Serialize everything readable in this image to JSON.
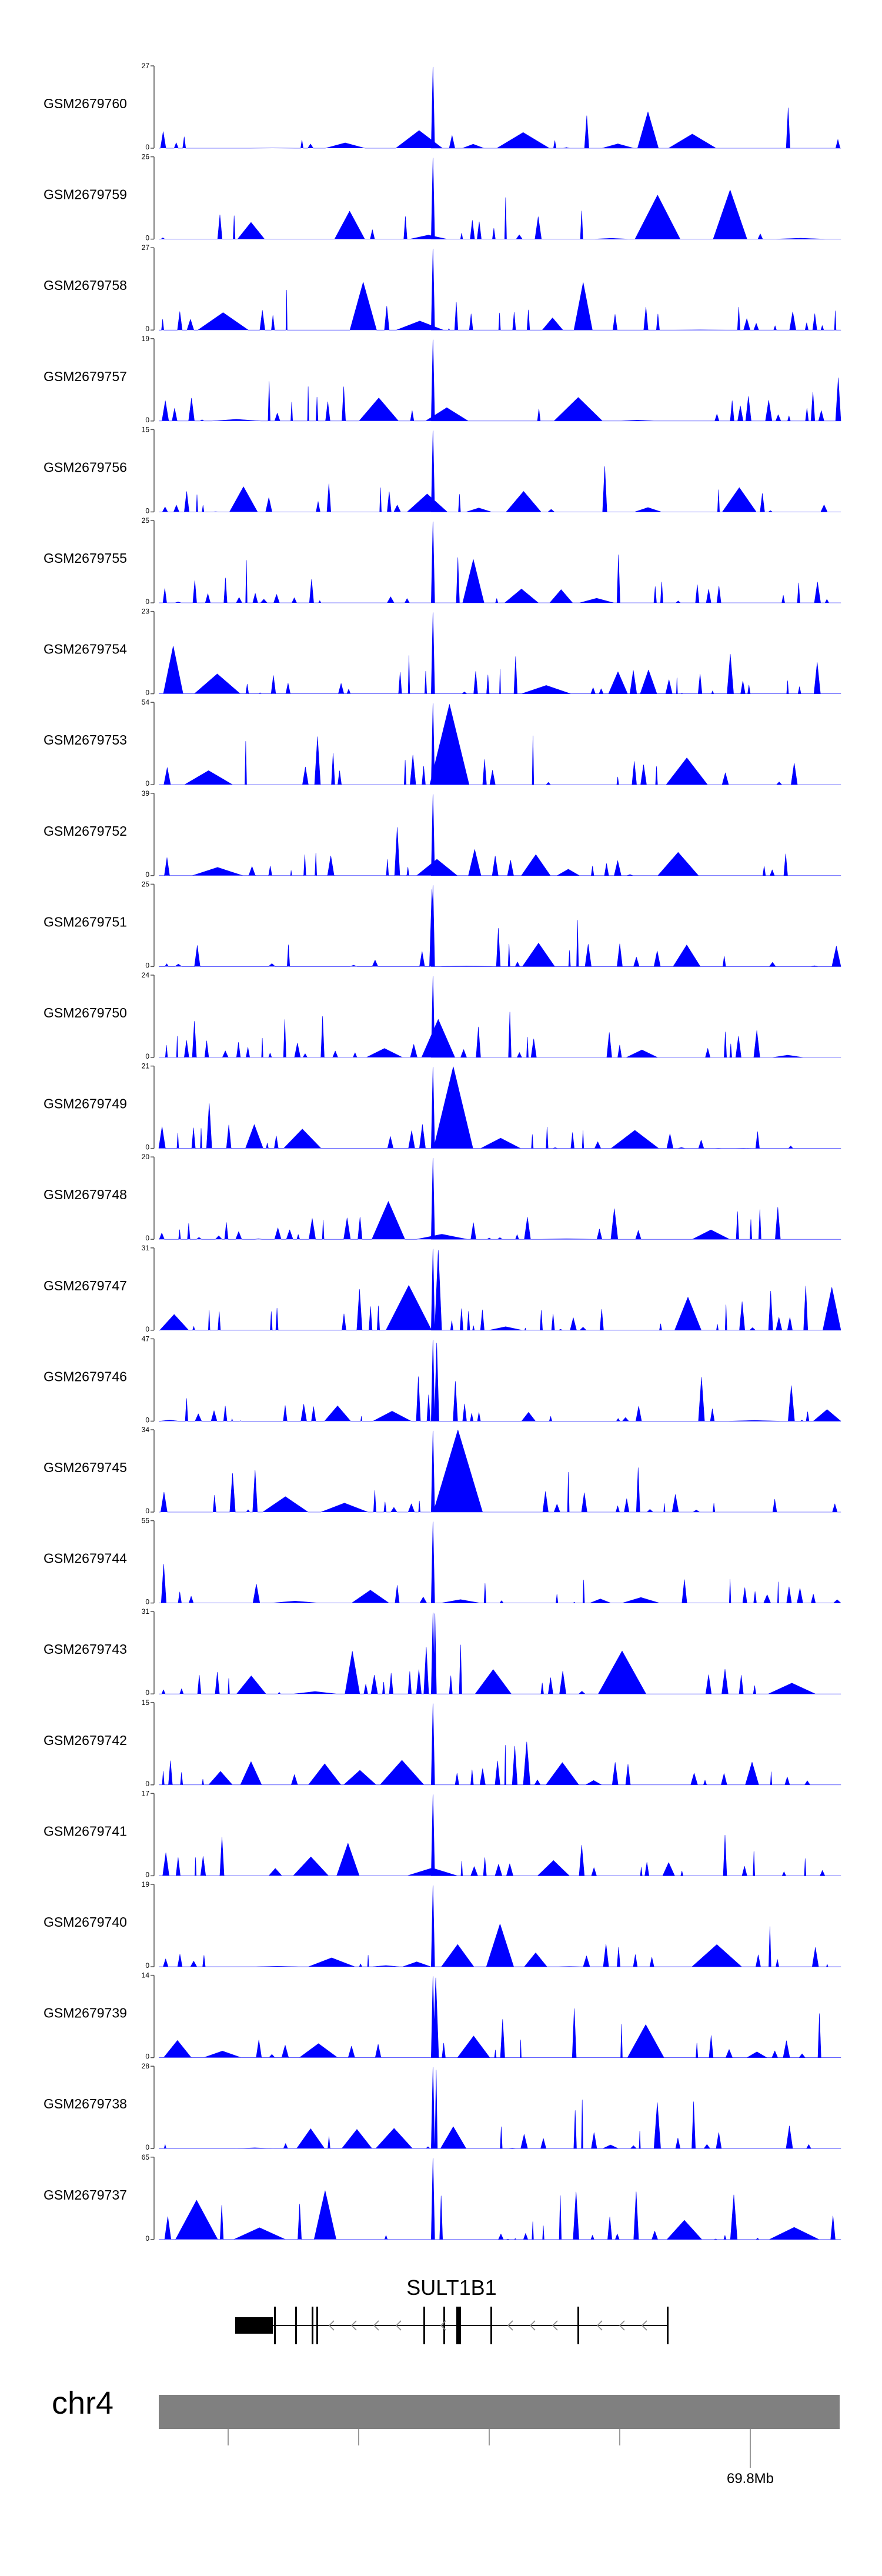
{
  "chart_data": {
    "type": "area",
    "title": "",
    "fill_color": "#0000ff",
    "tracks": [
      {
        "name": "GSM2679760",
        "ymax": "27",
        "ymin": "0"
      },
      {
        "name": "GSM2679759",
        "ymax": "26",
        "ymin": "0"
      },
      {
        "name": "GSM2679758",
        "ymax": "27",
        "ymin": "0"
      },
      {
        "name": "GSM2679757",
        "ymax": "19",
        "ymin": "0"
      },
      {
        "name": "GSM2679756",
        "ymax": "15",
        "ymin": "0"
      },
      {
        "name": "GSM2679755",
        "ymax": "25",
        "ymin": "0"
      },
      {
        "name": "GSM2679754",
        "ymax": "23",
        "ymin": "0"
      },
      {
        "name": "GSM2679753",
        "ymax": "54",
        "ymin": "0"
      },
      {
        "name": "GSM2679752",
        "ymax": "39",
        "ymin": "0"
      },
      {
        "name": "GSM2679751",
        "ymax": "25",
        "ymin": "0"
      },
      {
        "name": "GSM2679750",
        "ymax": "24",
        "ymin": "0"
      },
      {
        "name": "GSM2679749",
        "ymax": "21",
        "ymin": "0"
      },
      {
        "name": "GSM2679748",
        "ymax": "20",
        "ymin": "0"
      },
      {
        "name": "GSM2679747",
        "ymax": "31",
        "ymin": "0"
      },
      {
        "name": "GSM2679746",
        "ymax": "47",
        "ymin": "0"
      },
      {
        "name": "GSM2679745",
        "ymax": "34",
        "ymin": "0"
      },
      {
        "name": "GSM2679744",
        "ymax": "55",
        "ymin": "0"
      },
      {
        "name": "GSM2679743",
        "ymax": "31",
        "ymin": "0"
      },
      {
        "name": "GSM2679742",
        "ymax": "15",
        "ymin": "0"
      },
      {
        "name": "GSM2679741",
        "ymax": "17",
        "ymin": "0"
      },
      {
        "name": "GSM2679740",
        "ymax": "19",
        "ymin": "0"
      },
      {
        "name": "GSM2679739",
        "ymax": "14",
        "ymin": "0"
      },
      {
        "name": "GSM2679738",
        "ymax": "28",
        "ymin": "0"
      },
      {
        "name": "GSM2679737",
        "ymax": "65",
        "ymin": "0"
      }
    ],
    "gene": {
      "name": "SULT1B1",
      "strand": "-"
    },
    "chromosome": {
      "name": "chr4",
      "position_label": "69.8Mb"
    },
    "xlabel": "",
    "ylabel": ""
  }
}
